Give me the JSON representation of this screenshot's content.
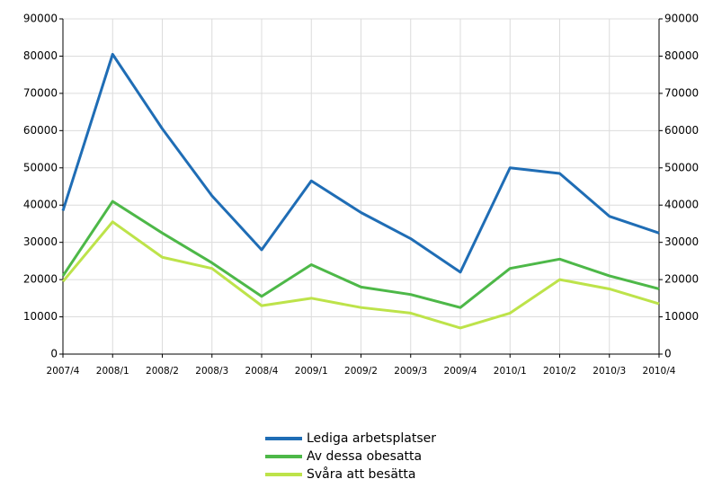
{
  "chart_data": {
    "type": "line",
    "categories": [
      "2007/4",
      "2008/1",
      "2008/2",
      "2008/3",
      "2008/4",
      "2009/1",
      "2009/2",
      "2009/3",
      "2009/4",
      "2010/1",
      "2010/2",
      "2010/3",
      "2010/4"
    ],
    "series": [
      {
        "name": "Lediga arbetsplatser",
        "color": "#1f6db5",
        "values": [
          38500,
          80500,
          60500,
          42500,
          28000,
          46500,
          38000,
          31000,
          22000,
          50000,
          48500,
          37000,
          32500
        ]
      },
      {
        "name": "Av dessa obesatta",
        "color": "#4db848",
        "values": [
          21000,
          41000,
          32500,
          24500,
          15500,
          24000,
          18000,
          16000,
          12500,
          23000,
          25500,
          21000,
          17500
        ]
      },
      {
        "name": "Svåra att besätta",
        "color": "#bde34a",
        "values": [
          19500,
          35500,
          26000,
          23000,
          13000,
          15000,
          12500,
          11000,
          7000,
          11000,
          20000,
          17500,
          13500
        ]
      }
    ],
    "ylim": [
      0,
      90000
    ],
    "yticks": [
      0,
      10000,
      20000,
      30000,
      40000,
      50000,
      60000,
      70000,
      80000,
      90000
    ],
    "grid": true,
    "legend": "bottom"
  }
}
